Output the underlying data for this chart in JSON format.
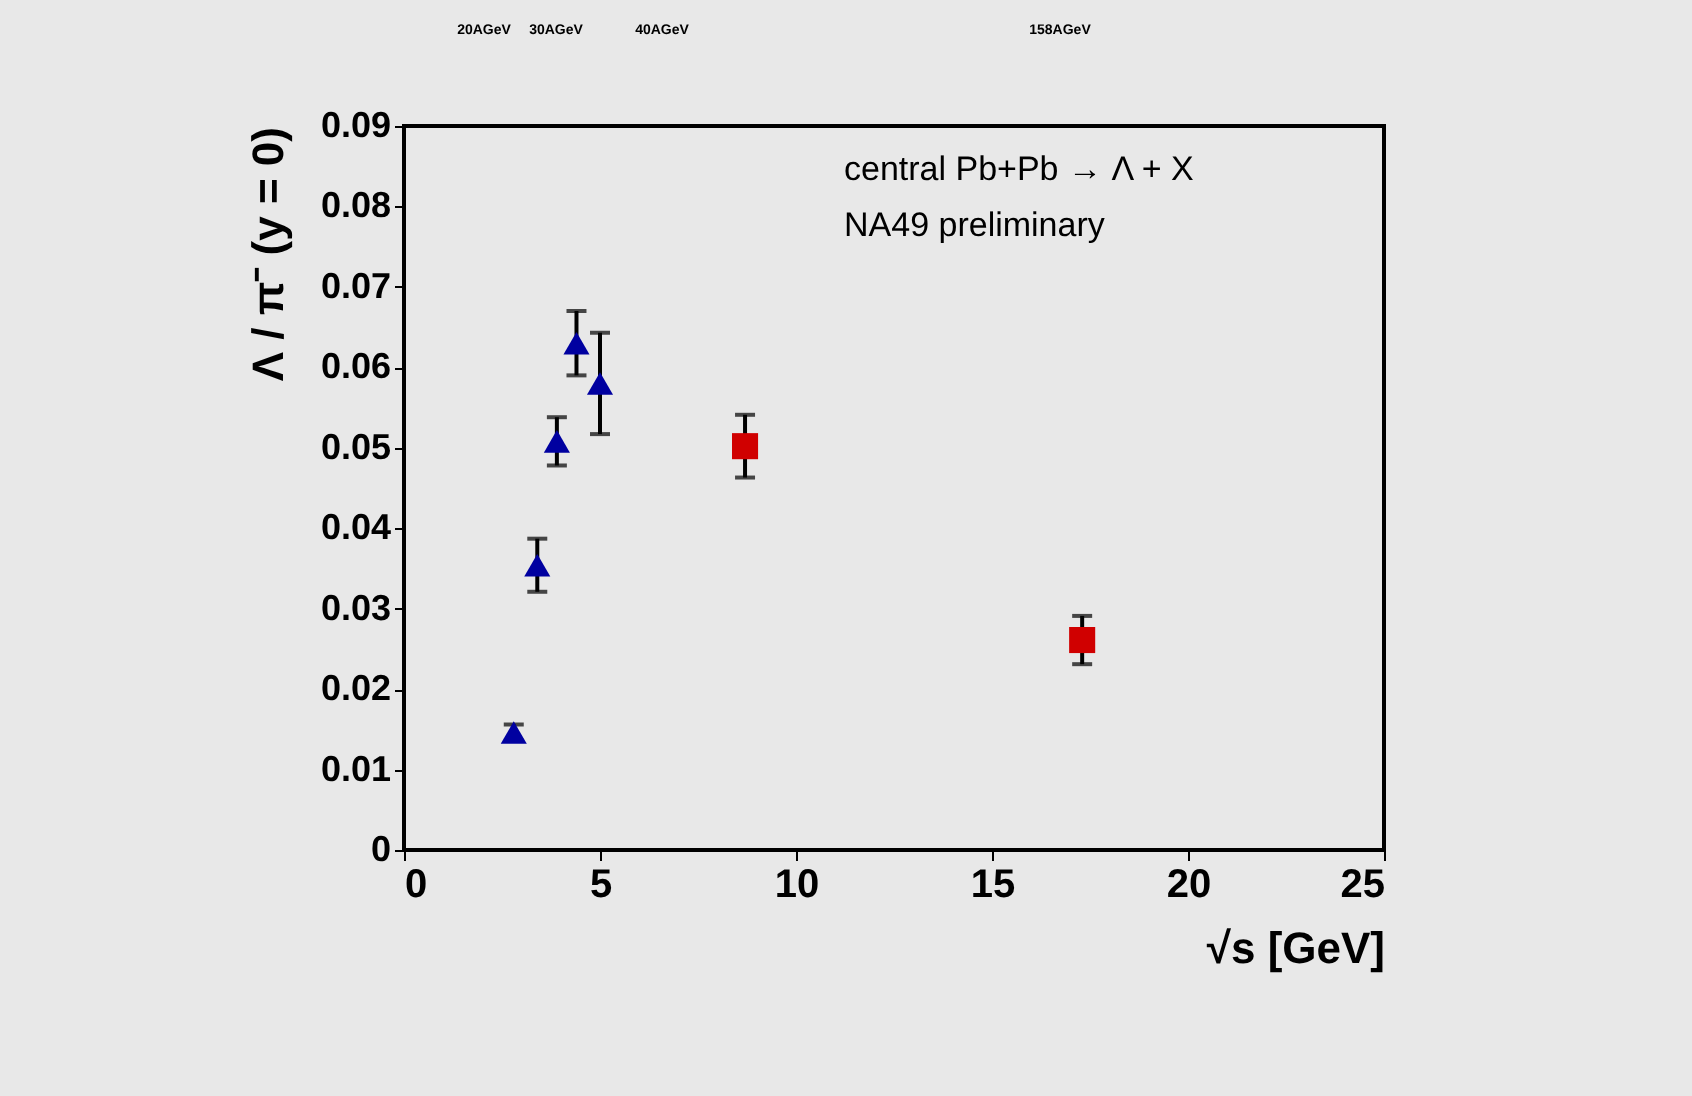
{
  "chart_data": {
    "type": "scatter",
    "xlabel": "√s [GeV]",
    "ylabel": "Λ / π⁻ (y = 0)",
    "xlim": [
      0,
      25
    ],
    "xticks": [
      0,
      5,
      10,
      15,
      20,
      25
    ],
    "ylim": [
      0,
      0.09
    ],
    "yticks": [
      0,
      0.01,
      0.02,
      0.03,
      0.04,
      0.05,
      0.06,
      0.07,
      0.08,
      0.09
    ],
    "grid": false,
    "annotations": [
      "central Pb+Pb → Λ + X",
      "NA49 preliminary",
      "20AGeV",
      "30AGeV",
      "40AGeV",
      "158AGeV"
    ],
    "series": [
      {
        "color": "#0000a0",
        "marker": "triangle",
        "x": [
          2.8,
          3.4,
          3.9,
          4.4,
          5.0
        ],
        "values": [
          0.0146,
          0.0354,
          0.0508,
          0.063,
          0.058
        ],
        "errors": [
          0.001,
          0.0033,
          0.003,
          0.004,
          0.0063
        ]
      },
      {
        "color": "#d00000",
        "marker": "square",
        "x": [
          8.7,
          17.3
        ],
        "values": [
          0.0502,
          0.0261
        ],
        "errors": [
          0.0039,
          0.003
        ]
      }
    ]
  }
}
